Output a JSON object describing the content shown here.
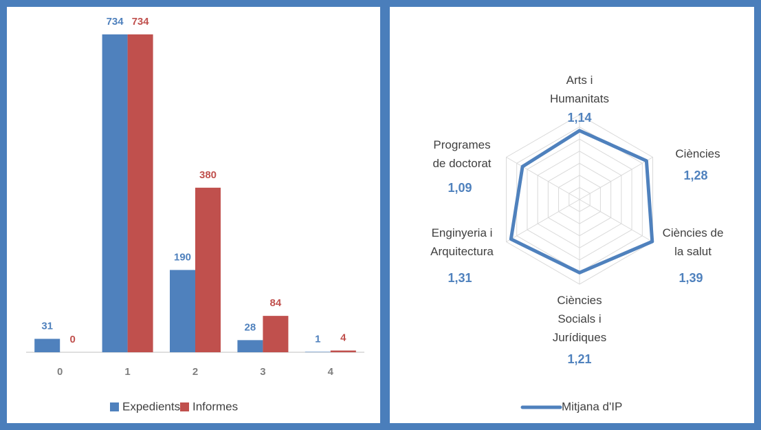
{
  "chart_data": [
    {
      "type": "bar",
      "categories": [
        "0",
        "1",
        "2",
        "3",
        "4"
      ],
      "series": [
        {
          "name": "Expedients",
          "color": "#4f81bd",
          "values": [
            31,
            734,
            190,
            28,
            1
          ]
        },
        {
          "name": "Informes",
          "color": "#c0504d",
          "values": [
            0,
            734,
            380,
            84,
            4
          ]
        }
      ],
      "legend": "bottom"
    },
    {
      "type": "radar",
      "categories": [
        [
          "Arts i",
          "Humanitats"
        ],
        [
          "Ciències"
        ],
        [
          "Ciències de",
          "la salut"
        ],
        [
          "Ciències",
          "Socials i",
          "Jurídiques"
        ],
        [
          "Enginyeria i",
          "Arquitectura"
        ],
        [
          "Programes",
          "de doctorat"
        ]
      ],
      "series": [
        {
          "name": "Mitjana d'IP",
          "color": "#4f81bd",
          "values": [
            1.14,
            1.28,
            1.39,
            1.21,
            1.31,
            1.09
          ],
          "value_labels": [
            "1,14",
            "1,28",
            "1,39",
            "1,21",
            "1,31",
            "1,09"
          ]
        }
      ],
      "rlim": [
        0,
        1.4
      ],
      "rticks": [
        0.2,
        0.4,
        0.6,
        0.8,
        1.0,
        1.2,
        1.4
      ],
      "grid": true,
      "legend": "bottom"
    }
  ]
}
